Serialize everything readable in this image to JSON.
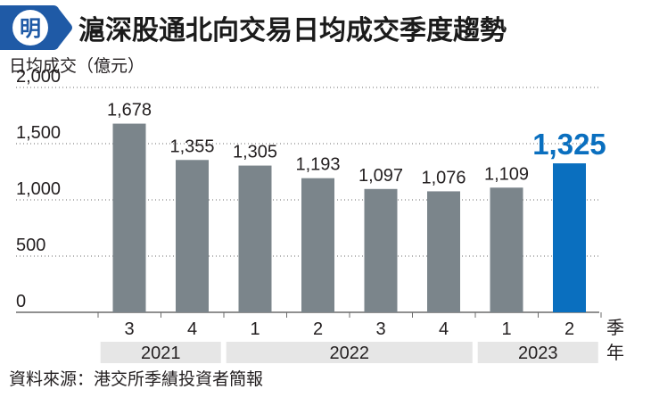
{
  "logo_char": "明",
  "colors": {
    "bar": "#7b858b",
    "highlight": "#0a6fbf",
    "year_band": "#e6e6e6",
    "grid": "#6b6b6b",
    "logo": "#1f5aa6"
  },
  "chart_data": {
    "type": "bar",
    "title": "滬深股通北向交易日均成交季度趨勢",
    "ylabel": "日均成交（億元）",
    "ylim": [
      0,
      2000
    ],
    "yticks": [
      0,
      500,
      1000,
      1500,
      2000
    ],
    "yticklabels": [
      "0",
      "500",
      "1,000",
      "1,500",
      "2,000"
    ],
    "grid": true,
    "categories": [
      "3",
      "4",
      "1",
      "2",
      "3",
      "4",
      "1",
      "2"
    ],
    "values": [
      1678,
      1355,
      1305,
      1193,
      1097,
      1076,
      1109,
      1325
    ],
    "value_labels": [
      "1,678",
      "1,355",
      "1,305",
      "1,193",
      "1,097",
      "1,076",
      "1,109",
      "1,325"
    ],
    "highlight_index": 7,
    "years": [
      {
        "label": "2021",
        "start": 0,
        "end": 1
      },
      {
        "label": "2022",
        "start": 2,
        "end": 5
      },
      {
        "label": "2023",
        "start": 6,
        "end": 7
      }
    ],
    "quarter_axis_label": "季",
    "year_axis_label": "年"
  },
  "source": "資料來源：港交所季績投資者簡報"
}
